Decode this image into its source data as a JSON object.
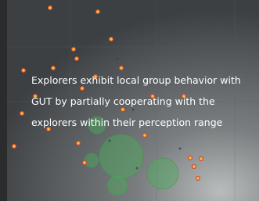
{
  "caption": {
    "lines": [
      "Explorers exhibit local group behavior with",
      "GUT by partially cooperating with the",
      "explorers within their perception range"
    ]
  }
}
